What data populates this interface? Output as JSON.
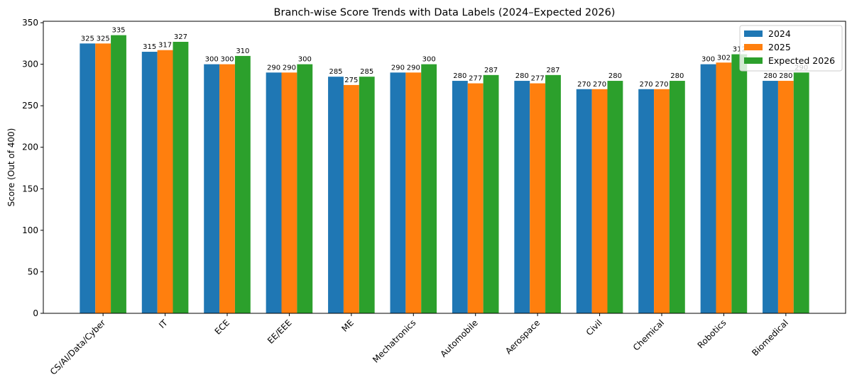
{
  "chart_data": {
    "type": "bar",
    "title": "Branch-wise Score Trends with Data Labels (2024–Expected 2026)",
    "xlabel": "",
    "ylabel": "Score (Out of 400)",
    "ylim": [
      0,
      351.75
    ],
    "yticks": [
      0,
      50,
      100,
      150,
      200,
      250,
      300,
      350
    ],
    "grid": false,
    "legend_placement": "top-right",
    "categories": [
      "CS/AI/Data/Cyber",
      "IT",
      "ECE",
      "EE/EEE",
      "ME",
      "Mechatronics",
      "Automobile",
      "Aerospace",
      "Civil",
      "Chemical",
      "Robotics",
      "Biomedical"
    ],
    "series": [
      {
        "name": "2024",
        "color": "#1f77b4",
        "values": [
          325,
          315,
          300,
          290,
          285,
          290,
          280,
          280,
          270,
          270,
          300,
          280
        ]
      },
      {
        "name": "2025",
        "color": "#ff7f0e",
        "values": [
          325,
          317,
          300,
          290,
          275,
          290,
          277,
          277,
          270,
          270,
          302,
          280
        ]
      },
      {
        "name": "Expected 2026",
        "color": "#2ca02c",
        "values": [
          335,
          327,
          310,
          300,
          285,
          300,
          287,
          287,
          280,
          280,
          312,
          290
        ]
      }
    ]
  }
}
